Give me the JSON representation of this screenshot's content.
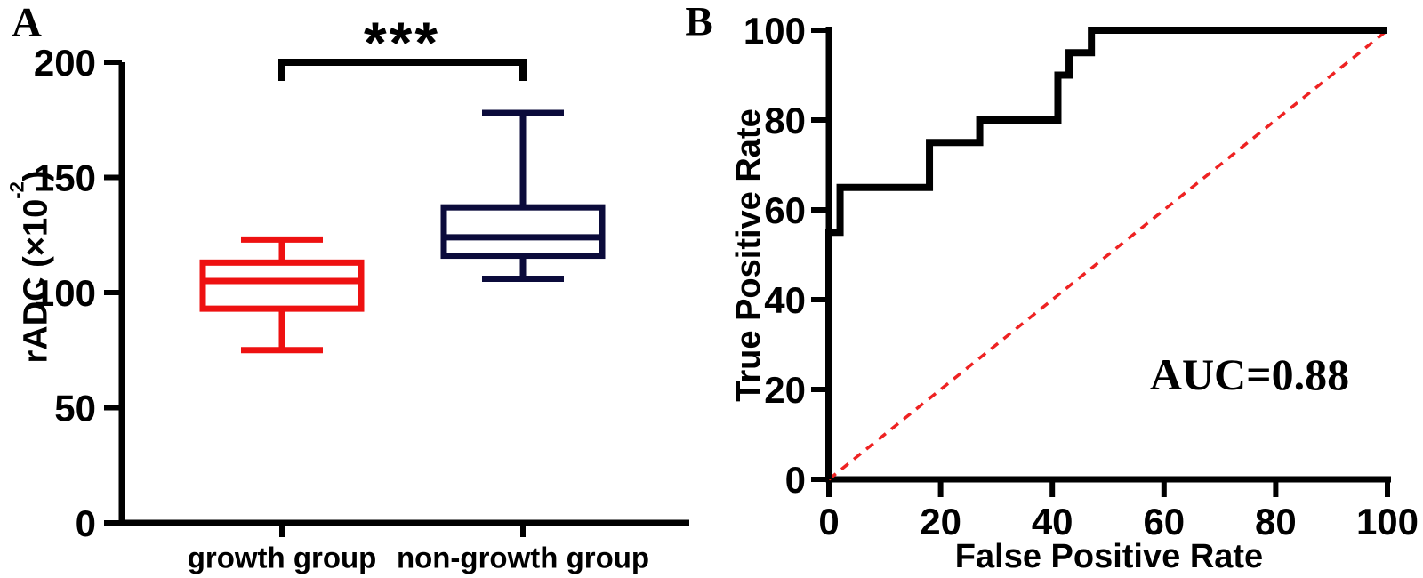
{
  "panels": {
    "a": "A",
    "b": "B"
  },
  "labels": {
    "a_ylabel_prefix": "rADC (×10",
    "a_ylabel_sup": "-2",
    "a_ylabel_suffix": ")"
  },
  "colors": {
    "growth": "#ee1111",
    "non_growth": "#0b0b3b",
    "roc_curve": "#000000",
    "diagonal": "#ee2222",
    "axis": "#000000",
    "background": "#ffffff"
  },
  "chart_data": [
    {
      "type": "box",
      "panel": "A",
      "title": "",
      "xlabel": "",
      "ylabel": "rADC (×10⁻²)",
      "ylim": [
        0,
        200
      ],
      "yticks": [
        0,
        50,
        100,
        150,
        200
      ],
      "grid": false,
      "categories": [
        "growth group",
        "non-growth group"
      ],
      "series": [
        {
          "name": "growth group",
          "color": "#ee1111",
          "whisker_low": 75,
          "q1": 93,
          "median": 105,
          "q3": 113,
          "whisker_high": 123
        },
        {
          "name": "non-growth group",
          "color": "#0b0b3b",
          "whisker_low": 106,
          "q1": 116,
          "median": 124,
          "q3": 137,
          "whisker_high": 178
        }
      ],
      "significance_label": "***"
    },
    {
      "type": "line",
      "panel": "B",
      "title": "",
      "xlabel": "False Positive Rate",
      "ylabel": "True Positive Rate",
      "xlim": [
        0,
        100
      ],
      "ylim": [
        0,
        100
      ],
      "xticks": [
        0,
        20,
        40,
        60,
        80,
        100
      ],
      "yticks": [
        0,
        20,
        40,
        60,
        80,
        100
      ],
      "grid": false,
      "legend": "none",
      "annotation": "AUC=0.88",
      "series": [
        {
          "name": "reference diagonal",
          "color": "#ee2222",
          "style": "dashed",
          "points": [
            [
              0,
              0
            ],
            [
              100,
              100
            ]
          ]
        },
        {
          "name": "ROC curve",
          "color": "#000000",
          "style": "solid",
          "points": [
            [
              0,
              0
            ],
            [
              0,
              55
            ],
            [
              2,
              55
            ],
            [
              2,
              65
            ],
            [
              18,
              65
            ],
            [
              18,
              75
            ],
            [
              27,
              75
            ],
            [
              27,
              80
            ],
            [
              41,
              80
            ],
            [
              41,
              90
            ],
            [
              43,
              90
            ],
            [
              43,
              95
            ],
            [
              47,
              95
            ],
            [
              47,
              100
            ],
            [
              100,
              100
            ]
          ]
        }
      ]
    }
  ]
}
